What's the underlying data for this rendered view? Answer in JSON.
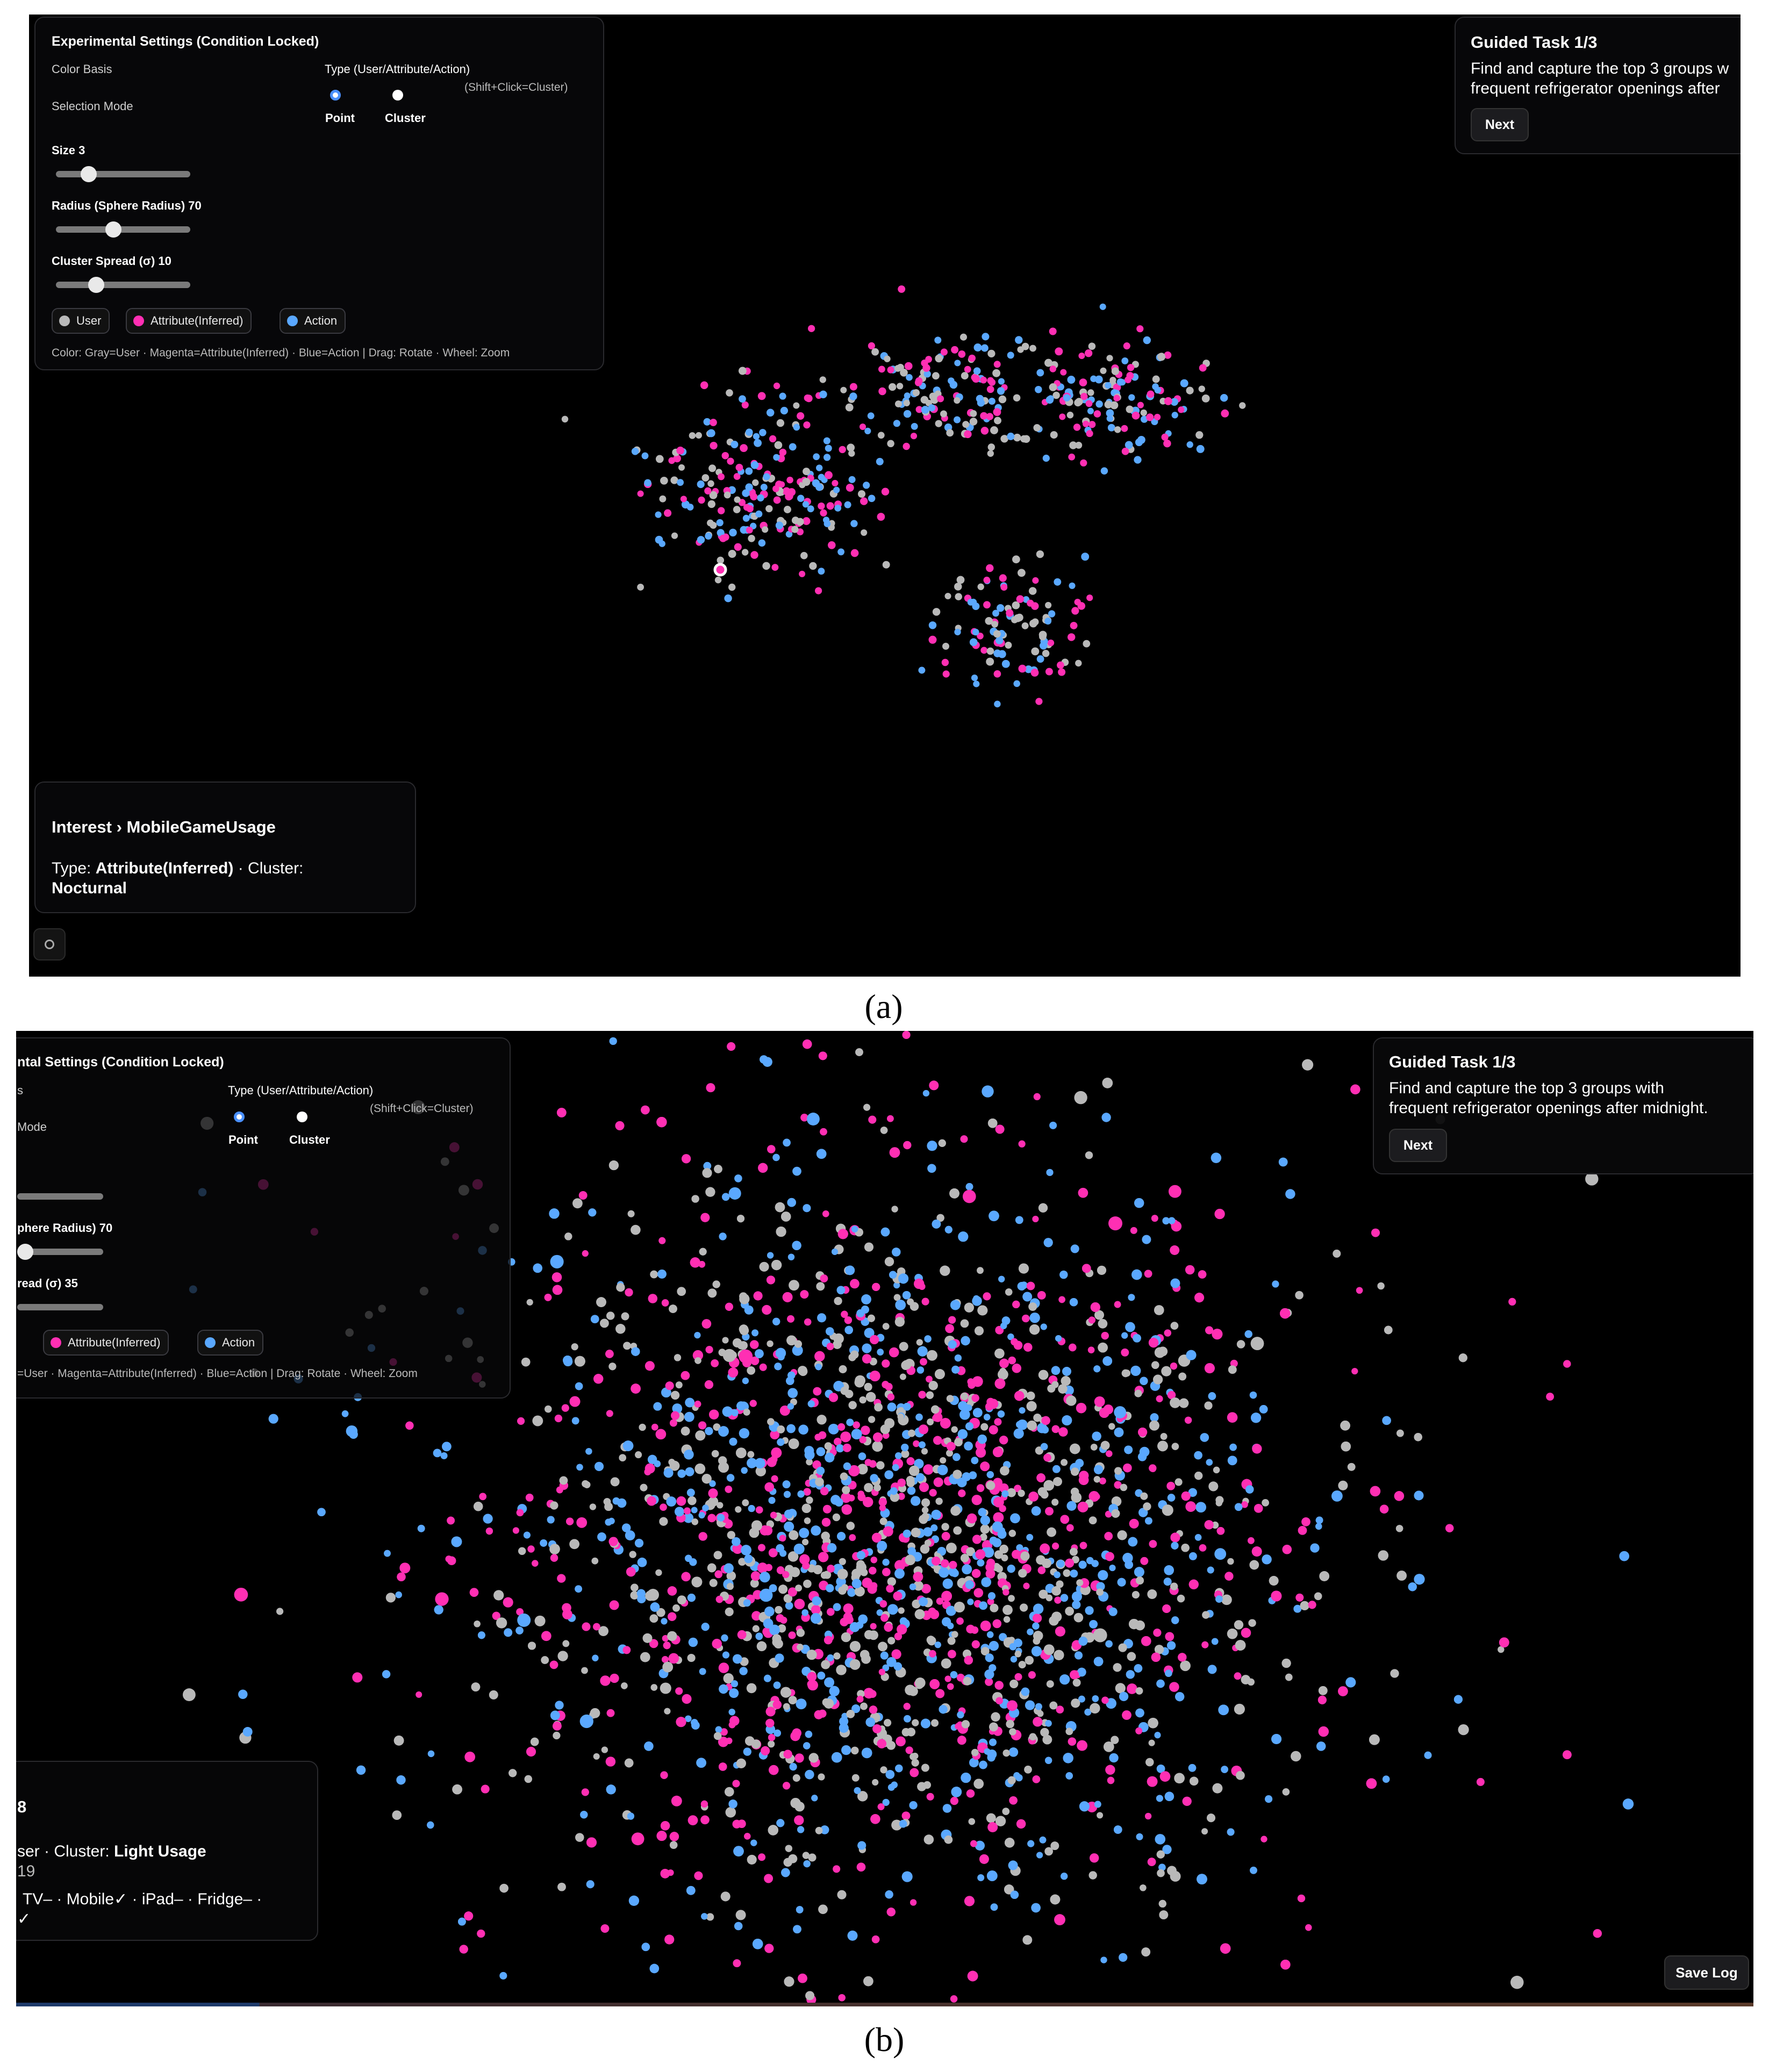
{
  "captions": {
    "a": "(a)",
    "b": "(b)"
  },
  "colors": {
    "user": "#b9b9b9",
    "attribute": "#ff2fb3",
    "action": "#5aa8ff",
    "background": "#000000"
  },
  "panel_a": {
    "settings": {
      "title": "Experimental Settings (Condition Locked)",
      "color_basis_label": "Color Basis",
      "selection_mode_label": "Selection Mode",
      "type_label": "Type (User/Attribute/Action)",
      "shift_hint": "(Shift+Click=Cluster)",
      "point_label": "Point",
      "cluster_label": "Cluster",
      "selected_mode": "Point",
      "size_label": "Size 3",
      "size_value": 3,
      "radius_label": "Radius (Sphere Radius) 70",
      "radius_value": 70,
      "spread_label": "Cluster Spread (σ) 10",
      "spread_value": 10,
      "legend_user": "User",
      "legend_attr": "Attribute(Inferred)",
      "legend_action": "Action",
      "help": "Color: Gray=User · Magenta=Attribute(Inferred) · Blue=Action | Drag: Rotate · Wheel: Zoom"
    },
    "guide": {
      "title": "Guided Task 1/3",
      "line1": "Find and capture the top 3 groups w",
      "line2": "frequent refrigerator openings after",
      "next": "Next"
    },
    "info": {
      "title": "Interest › MobileGameUsage",
      "type_prefix": "Type: ",
      "type_value": "Attribute(Inferred)",
      "cluster_prefix": " · Cluster:",
      "cluster_value": "Nocturnal"
    },
    "gear_icon": "gear-icon"
  },
  "panel_b": {
    "settings": {
      "title_fragment": "ntal Settings (Condition Locked)",
      "color_basis_fragment": "s",
      "selection_mode_fragment": "Mode",
      "type_label": "Type (User/Attribute/Action)",
      "shift_hint": "(Shift+Click=Cluster)",
      "point_label": "Point",
      "cluster_label": "Cluster",
      "selected_mode": "Point",
      "radius_fragment": "phere Radius) 70",
      "spread_fragment": "read (σ) 35",
      "legend_attr": "Attribute(Inferred)",
      "legend_action": "Action",
      "help_fragment": "=User · Magenta=Attribute(Inferred) · Blue=Action | Drag: Rotate · Wheel: Zoom"
    },
    "guide": {
      "title": "Guided Task 1/3",
      "line1": "Find and capture the top 3 groups with",
      "line2": "frequent refrigerator openings after midnight.",
      "next": "Next"
    },
    "info": {
      "title_fragment": "8",
      "line1_prefix": "ser · Cluster: ",
      "line1_value": "Light Usage",
      "line2": "19",
      "line3": "TV– · Mobile✓ · iPad– · Fridge– ·",
      "line4": "✓"
    },
    "save_log": "Save Log"
  }
}
